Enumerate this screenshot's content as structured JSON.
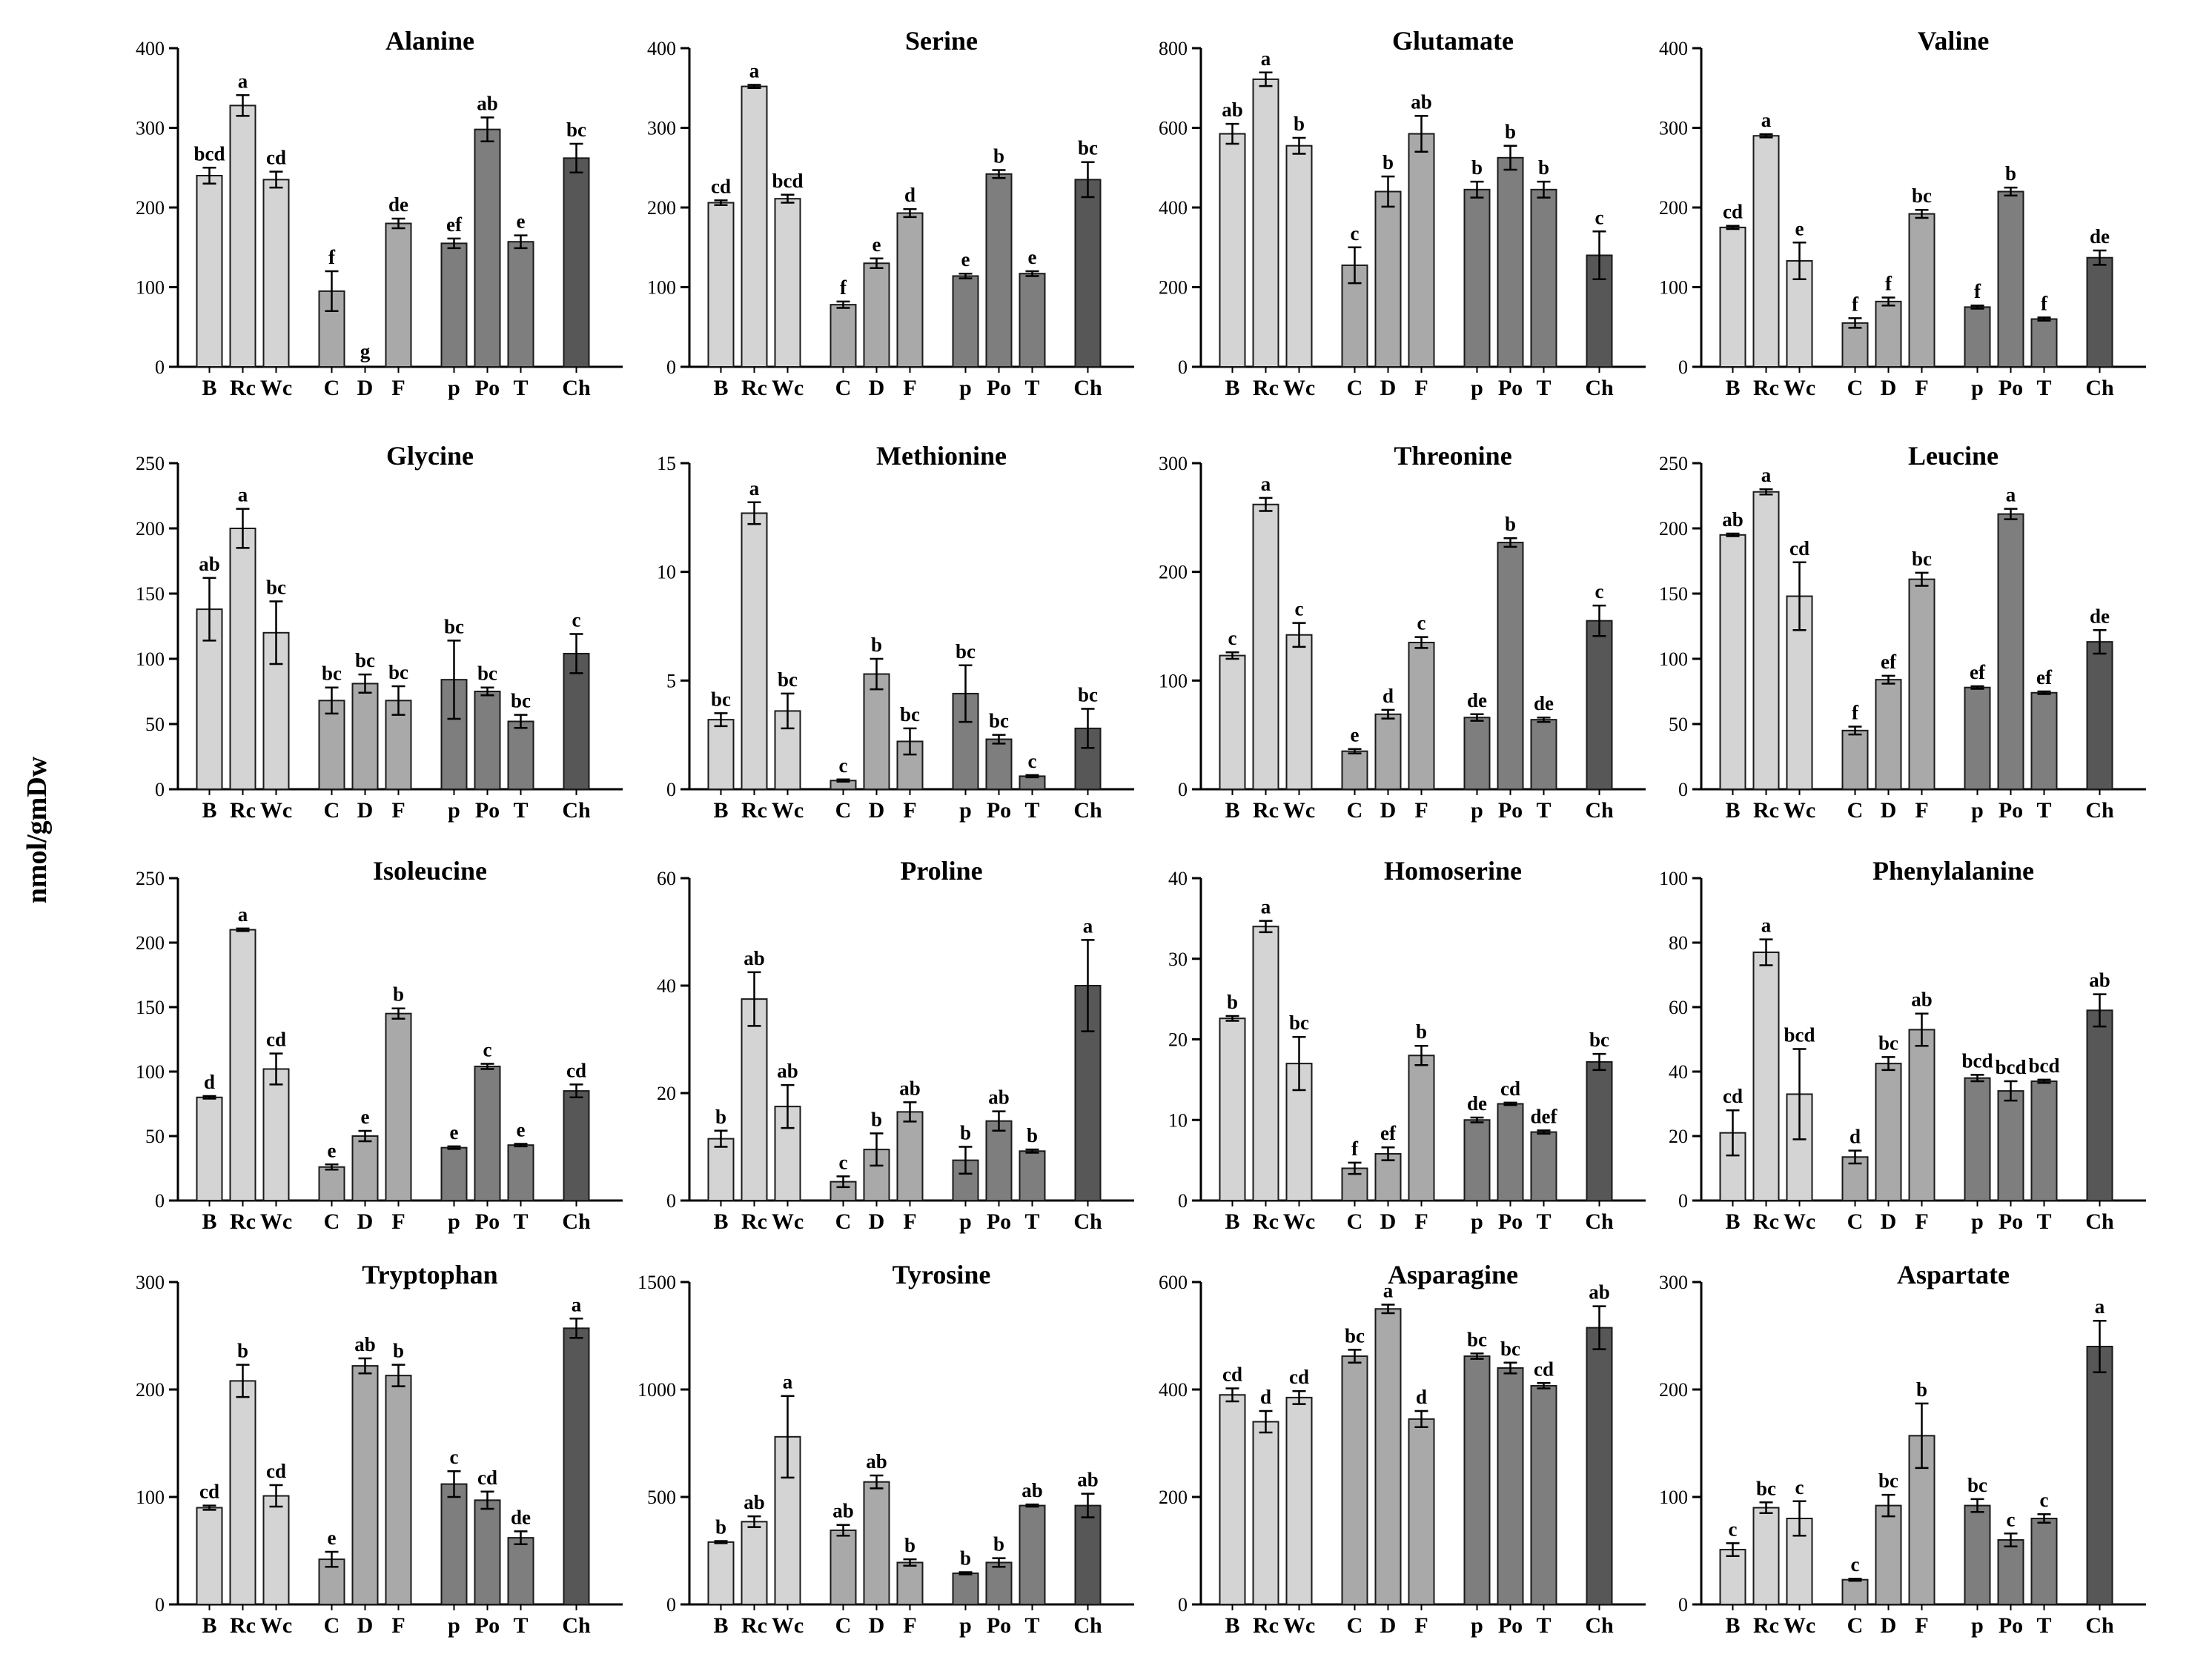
{
  "figure": {
    "ylabel": "nmol/gmDw",
    "colors": {
      "light": "#d4d4d4",
      "mid": "#a9a9a9",
      "dark": "#7e7e7e",
      "darkest": "#575757",
      "stroke": "#1a1a1a"
    }
  },
  "chart_data": [
    {
      "type": "bar",
      "title": "Alanine",
      "categories": [
        "B",
        "Rc",
        "Wc",
        "C",
        "D",
        "F",
        "p",
        "Po",
        "T",
        "Ch"
      ],
      "values": [
        240,
        328,
        235,
        95,
        0,
        180,
        155,
        298,
        157,
        262
      ],
      "errors": [
        10,
        13,
        10,
        25,
        0,
        6,
        6,
        15,
        8,
        18
      ],
      "labels": [
        "bcd",
        "a",
        "cd",
        "f",
        "g",
        "de",
        "ef",
        "ab",
        "e",
        "bc"
      ],
      "ylim": [
        0,
        400
      ],
      "yticks": [
        0,
        100,
        200,
        300,
        400
      ]
    },
    {
      "type": "bar",
      "title": "Serine",
      "categories": [
        "B",
        "Rc",
        "Wc",
        "C",
        "D",
        "F",
        "p",
        "Po",
        "T",
        "Ch"
      ],
      "values": [
        206,
        352,
        211,
        78,
        130,
        193,
        114,
        242,
        117,
        235
      ],
      "errors": [
        3,
        2,
        5,
        4,
        6,
        5,
        3,
        5,
        3,
        22
      ],
      "labels": [
        "cd",
        "a",
        "bcd",
        "f",
        "e",
        "d",
        "e",
        "b",
        "e",
        "bc"
      ],
      "ylim": [
        0,
        400
      ],
      "yticks": [
        0,
        100,
        200,
        300,
        400
      ]
    },
    {
      "type": "bar",
      "title": "Glutamate",
      "categories": [
        "B",
        "Rc",
        "Wc",
        "C",
        "D",
        "F",
        "p",
        "Po",
        "T",
        "Ch"
      ],
      "values": [
        585,
        722,
        555,
        255,
        440,
        585,
        445,
        525,
        445,
        280
      ],
      "errors": [
        25,
        17,
        20,
        45,
        38,
        45,
        20,
        30,
        20,
        60
      ],
      "labels": [
        "ab",
        "a",
        "b",
        "c",
        "b",
        "ab",
        "b",
        "b",
        "b",
        "c"
      ],
      "ylim": [
        0,
        800
      ],
      "yticks": [
        0,
        200,
        400,
        600,
        800
      ]
    },
    {
      "type": "bar",
      "title": "Valine",
      "categories": [
        "B",
        "Rc",
        "Wc",
        "C",
        "D",
        "F",
        "p",
        "Po",
        "T",
        "Ch"
      ],
      "values": [
        175,
        290,
        133,
        55,
        82,
        192,
        75,
        220,
        60,
        137
      ],
      "errors": [
        2,
        2,
        23,
        6,
        5,
        5,
        2,
        5,
        2,
        9
      ],
      "labels": [
        "cd",
        "a",
        "e",
        "f",
        "f",
        "bc",
        "f",
        "b",
        "f",
        "de"
      ],
      "ylim": [
        0,
        400
      ],
      "yticks": [
        0,
        100,
        200,
        300,
        400
      ]
    },
    {
      "type": "bar",
      "title": "Glycine",
      "categories": [
        "B",
        "Rc",
        "Wc",
        "C",
        "D",
        "F",
        "p",
        "Po",
        "T",
        "Ch"
      ],
      "values": [
        138,
        200,
        120,
        68,
        81,
        68,
        84,
        75,
        52,
        104
      ],
      "errors": [
        24,
        15,
        24,
        10,
        7,
        11,
        30,
        3,
        5,
        15
      ],
      "labels": [
        "ab",
        "a",
        "bc",
        "bc",
        "bc",
        "bc",
        "bc",
        "bc",
        "bc",
        "c"
      ],
      "ylim": [
        0,
        250
      ],
      "yticks": [
        0,
        50,
        100,
        150,
        200,
        250
      ]
    },
    {
      "type": "bar",
      "title": "Methionine",
      "categories": [
        "B",
        "Rc",
        "Wc",
        "C",
        "D",
        "F",
        "p",
        "Po",
        "T",
        "Ch"
      ],
      "values": [
        3.2,
        12.7,
        3.6,
        0.4,
        5.3,
        2.2,
        4.4,
        2.3,
        0.6,
        2.8
      ],
      "errors": [
        0.3,
        0.5,
        0.8,
        0.05,
        0.7,
        0.6,
        1.3,
        0.2,
        0.05,
        0.9
      ],
      "labels": [
        "bc",
        "a",
        "bc",
        "c",
        "b",
        "bc",
        "bc",
        "bc",
        "c",
        "bc"
      ],
      "ylim": [
        0,
        15
      ],
      "yticks": [
        0,
        5,
        10,
        15
      ]
    },
    {
      "type": "bar",
      "title": "Threonine",
      "categories": [
        "B",
        "Rc",
        "Wc",
        "C",
        "D",
        "F",
        "p",
        "Po",
        "T",
        "Ch"
      ],
      "values": [
        123,
        262,
        142,
        35,
        69,
        135,
        66,
        227,
        64,
        155
      ],
      "errors": [
        3,
        6,
        11,
        2,
        4,
        5,
        3,
        4,
        2,
        14
      ],
      "labels": [
        "c",
        "a",
        "c",
        "e",
        "d",
        "c",
        "de",
        "b",
        "de",
        "c"
      ],
      "ylim": [
        0,
        300
      ],
      "yticks": [
        0,
        100,
        200,
        300
      ]
    },
    {
      "type": "bar",
      "title": "Leucine",
      "categories": [
        "B",
        "Rc",
        "Wc",
        "C",
        "D",
        "F",
        "p",
        "Po",
        "T",
        "Ch"
      ],
      "values": [
        195,
        228,
        148,
        45,
        84,
        161,
        78,
        211,
        74,
        113
      ],
      "errors": [
        1,
        2,
        26,
        3,
        3,
        5,
        1,
        4,
        1,
        9
      ],
      "labels": [
        "ab",
        "a",
        "cd",
        "f",
        "ef",
        "bc",
        "ef",
        "a",
        "ef",
        "de"
      ],
      "ylim": [
        0,
        250
      ],
      "yticks": [
        0,
        50,
        100,
        150,
        200,
        250
      ]
    },
    {
      "type": "bar",
      "title": "Isoleucine",
      "categories": [
        "B",
        "Rc",
        "Wc",
        "C",
        "D",
        "F",
        "p",
        "Po",
        "T",
        "Ch"
      ],
      "values": [
        80,
        210,
        102,
        26,
        50,
        145,
        41,
        104,
        43,
        85
      ],
      "errors": [
        1,
        1,
        12,
        2,
        4,
        4,
        1,
        2,
        1,
        5
      ],
      "labels": [
        "d",
        "a",
        "cd",
        "e",
        "e",
        "b",
        "e",
        "c",
        "e",
        "cd"
      ],
      "ylim": [
        0,
        250
      ],
      "yticks": [
        0,
        50,
        100,
        150,
        200,
        250
      ]
    },
    {
      "type": "bar",
      "title": "Proline",
      "categories": [
        "B",
        "Rc",
        "Wc",
        "C",
        "D",
        "F",
        "p",
        "Po",
        "T",
        "Ch"
      ],
      "values": [
        11.5,
        37.5,
        17.5,
        3.5,
        9.5,
        16.5,
        7.5,
        14.8,
        9.2,
        40
      ],
      "errors": [
        1.5,
        5,
        4,
        1,
        3,
        1.8,
        2.5,
        1.8,
        0.3,
        8.5
      ],
      "labels": [
        "b",
        "ab",
        "ab",
        "c",
        "b",
        "ab",
        "b",
        "ab",
        "b",
        "a"
      ],
      "ylim": [
        0,
        60
      ],
      "yticks": [
        0,
        20,
        40,
        60
      ]
    },
    {
      "type": "bar",
      "title": "Homoserine",
      "categories": [
        "B",
        "Rc",
        "Wc",
        "C",
        "D",
        "F",
        "p",
        "Po",
        "T",
        "Ch"
      ],
      "values": [
        22.6,
        34,
        17,
        4,
        5.8,
        18,
        10,
        12,
        8.5,
        17.2
      ],
      "errors": [
        0.3,
        0.7,
        3.3,
        0.7,
        0.8,
        1.2,
        0.3,
        0.15,
        0.2,
        1
      ],
      "labels": [
        "b",
        "a",
        "bc",
        "f",
        "ef",
        "b",
        "de",
        "cd",
        "def",
        "bc"
      ],
      "ylim": [
        0,
        40
      ],
      "yticks": [
        0,
        10,
        20,
        30,
        40
      ]
    },
    {
      "type": "bar",
      "title": "Phenylalanine",
      "categories": [
        "B",
        "Rc",
        "Wc",
        "C",
        "D",
        "F",
        "p",
        "Po",
        "T",
        "Ch"
      ],
      "values": [
        21,
        77,
        33,
        13.5,
        42.5,
        53,
        38,
        34,
        37,
        59
      ],
      "errors": [
        7,
        4,
        14,
        2,
        2,
        5,
        1,
        3,
        0.5,
        5
      ],
      "labels": [
        "cd",
        "a",
        "bcd",
        "d",
        "bc",
        "ab",
        "bcd",
        "bcd",
        "bcd",
        "ab"
      ],
      "ylim": [
        0,
        100
      ],
      "yticks": [
        0,
        20,
        40,
        60,
        80,
        100
      ]
    },
    {
      "type": "bar",
      "title": "Tryptophan",
      "categories": [
        "B",
        "Rc",
        "Wc",
        "C",
        "D",
        "F",
        "p",
        "Po",
        "T",
        "Ch"
      ],
      "values": [
        90,
        208,
        101,
        42,
        222,
        213,
        112,
        97,
        62,
        257
      ],
      "errors": [
        2,
        15,
        10,
        7,
        7,
        10,
        12,
        8,
        6,
        9
      ],
      "labels": [
        "cd",
        "b",
        "cd",
        "e",
        "ab",
        "b",
        "c",
        "cd",
        "de",
        "a"
      ],
      "ylim": [
        0,
        300
      ],
      "yticks": [
        0,
        100,
        200,
        300
      ]
    },
    {
      "type": "bar",
      "title": "Tyrosine",
      "categories": [
        "B",
        "Rc",
        "Wc",
        "C",
        "D",
        "F",
        "p",
        "Po",
        "T",
        "Ch"
      ],
      "values": [
        290,
        385,
        780,
        345,
        570,
        195,
        145,
        195,
        460,
        460
      ],
      "errors": [
        5,
        25,
        190,
        25,
        30,
        15,
        5,
        20,
        5,
        55
      ],
      "labels": [
        "b",
        "ab",
        "a",
        "ab",
        "ab",
        "b",
        "b",
        "b",
        "ab",
        "ab"
      ],
      "ylim": [
        0,
        1500
      ],
      "yticks": [
        0,
        500,
        1000,
        1500
      ]
    },
    {
      "type": "bar",
      "title": "Asparagine",
      "categories": [
        "B",
        "Rc",
        "Wc",
        "C",
        "D",
        "F",
        "p",
        "Po",
        "T",
        "Ch"
      ],
      "values": [
        390,
        340,
        385,
        462,
        550,
        345,
        462,
        440,
        407,
        515
      ],
      "errors": [
        12,
        20,
        12,
        12,
        8,
        15,
        5,
        10,
        5,
        40
      ],
      "labels": [
        "cd",
        "d",
        "cd",
        "bc",
        "a",
        "d",
        "bc",
        "bc",
        "cd",
        "ab"
      ],
      "ylim": [
        0,
        600
      ],
      "yticks": [
        0,
        200,
        400,
        600
      ]
    },
    {
      "type": "bar",
      "title": "Aspartate",
      "categories": [
        "B",
        "Rc",
        "Wc",
        "C",
        "D",
        "F",
        "p",
        "Po",
        "T",
        "Ch"
      ],
      "values": [
        51,
        90,
        80,
        23,
        92,
        157,
        92,
        60,
        80,
        240
      ],
      "errors": [
        6,
        5,
        16,
        1,
        10,
        30,
        6,
        6,
        4,
        24
      ],
      "labels": [
        "c",
        "bc",
        "c",
        "c",
        "bc",
        "b",
        "bc",
        "c",
        "c",
        "a"
      ],
      "ylim": [
        0,
        300
      ],
      "yticks": [
        0,
        100,
        200,
        300
      ]
    }
  ]
}
